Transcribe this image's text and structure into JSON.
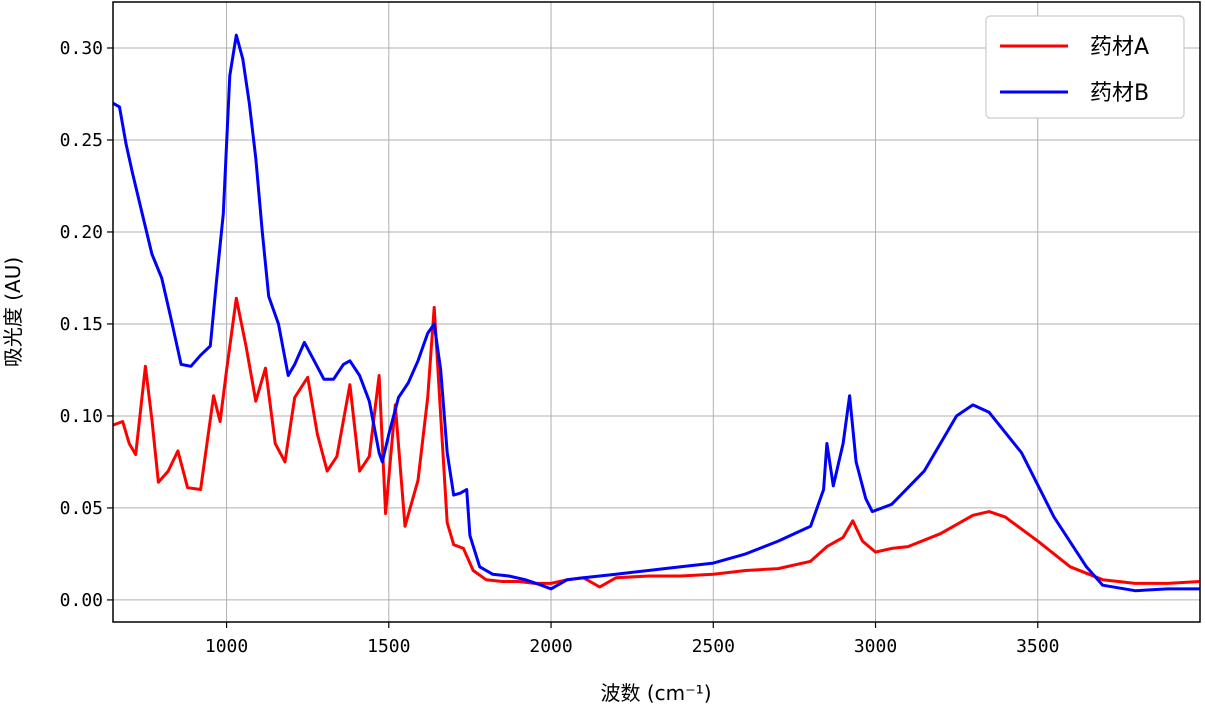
{
  "chart_data": {
    "type": "line",
    "title": "",
    "xlabel": "波数 (cm⁻¹)",
    "ylabel": "吸光度 (AU)",
    "xlim": [
      650,
      4000
    ],
    "ylim": [
      -0.012,
      0.325
    ],
    "xticks": [
      1000,
      1500,
      2000,
      2500,
      3000,
      3500
    ],
    "xtick_labels": [
      "1000",
      "1500",
      "2000",
      "2500",
      "3000",
      "3500"
    ],
    "yticks": [
      0.0,
      0.05,
      0.1,
      0.15,
      0.2,
      0.25,
      0.3
    ],
    "ytick_labels": [
      "0.00",
      "0.05",
      "0.10",
      "0.15",
      "0.20",
      "0.25",
      "0.30"
    ],
    "grid": true,
    "legend_position": "top-right",
    "series": [
      {
        "name": "药材A",
        "color": "#ff0000",
        "x": [
          650,
          680,
          700,
          720,
          750,
          770,
          790,
          820,
          850,
          880,
          920,
          960,
          980,
          1000,
          1030,
          1060,
          1090,
          1120,
          1150,
          1180,
          1210,
          1250,
          1280,
          1310,
          1340,
          1380,
          1410,
          1440,
          1470,
          1490,
          1520,
          1550,
          1590,
          1620,
          1640,
          1660,
          1680,
          1700,
          1730,
          1760,
          1800,
          1850,
          1900,
          1950,
          2000,
          2050,
          2100,
          2150,
          2200,
          2300,
          2400,
          2500,
          2600,
          2700,
          2800,
          2850,
          2900,
          2930,
          2960,
          3000,
          3050,
          3100,
          3200,
          3300,
          3350,
          3400,
          3500,
          3600,
          3700,
          3800,
          3900,
          4000
        ],
        "y": [
          0.095,
          0.097,
          0.085,
          0.079,
          0.127,
          0.098,
          0.064,
          0.07,
          0.081,
          0.061,
          0.06,
          0.111,
          0.097,
          0.125,
          0.164,
          0.138,
          0.108,
          0.126,
          0.085,
          0.075,
          0.11,
          0.121,
          0.09,
          0.07,
          0.078,
          0.117,
          0.07,
          0.078,
          0.122,
          0.047,
          0.106,
          0.04,
          0.065,
          0.11,
          0.159,
          0.1,
          0.042,
          0.03,
          0.028,
          0.016,
          0.011,
          0.01,
          0.01,
          0.009,
          0.009,
          0.011,
          0.012,
          0.007,
          0.012,
          0.013,
          0.013,
          0.014,
          0.016,
          0.017,
          0.021,
          0.029,
          0.034,
          0.043,
          0.032,
          0.026,
          0.028,
          0.029,
          0.036,
          0.046,
          0.048,
          0.045,
          0.032,
          0.018,
          0.011,
          0.009,
          0.009,
          0.01
        ]
      },
      {
        "name": "药材B",
        "color": "#0000ff",
        "x": [
          650,
          670,
          690,
          710,
          740,
          770,
          800,
          830,
          860,
          890,
          920,
          950,
          970,
          990,
          1010,
          1030,
          1050,
          1070,
          1090,
          1110,
          1130,
          1160,
          1190,
          1210,
          1240,
          1270,
          1300,
          1330,
          1360,
          1380,
          1410,
          1440,
          1470,
          1480,
          1500,
          1530,
          1560,
          1590,
          1620,
          1640,
          1660,
          1680,
          1700,
          1720,
          1740,
          1750,
          1780,
          1820,
          1870,
          1920,
          1970,
          2000,
          2020,
          2050,
          2100,
          2200,
          2300,
          2400,
          2500,
          2600,
          2700,
          2800,
          2840,
          2850,
          2870,
          2900,
          2920,
          2940,
          2970,
          2990,
          3050,
          3150,
          3250,
          3300,
          3350,
          3450,
          3550,
          3650,
          3700,
          3800,
          3900,
          4000
        ],
        "y": [
          0.27,
          0.268,
          0.248,
          0.232,
          0.21,
          0.188,
          0.175,
          0.152,
          0.128,
          0.127,
          0.133,
          0.138,
          0.175,
          0.21,
          0.285,
          0.307,
          0.294,
          0.27,
          0.24,
          0.2,
          0.165,
          0.15,
          0.122,
          0.128,
          0.14,
          0.13,
          0.12,
          0.12,
          0.128,
          0.13,
          0.122,
          0.108,
          0.08,
          0.075,
          0.09,
          0.11,
          0.118,
          0.13,
          0.145,
          0.15,
          0.125,
          0.08,
          0.057,
          0.058,
          0.06,
          0.035,
          0.018,
          0.014,
          0.013,
          0.011,
          0.008,
          0.006,
          0.008,
          0.011,
          0.012,
          0.014,
          0.016,
          0.018,
          0.02,
          0.025,
          0.032,
          0.04,
          0.06,
          0.085,
          0.062,
          0.085,
          0.111,
          0.075,
          0.055,
          0.048,
          0.052,
          0.07,
          0.1,
          0.106,
          0.102,
          0.08,
          0.045,
          0.018,
          0.008,
          0.005,
          0.006,
          0.006
        ]
      }
    ]
  }
}
